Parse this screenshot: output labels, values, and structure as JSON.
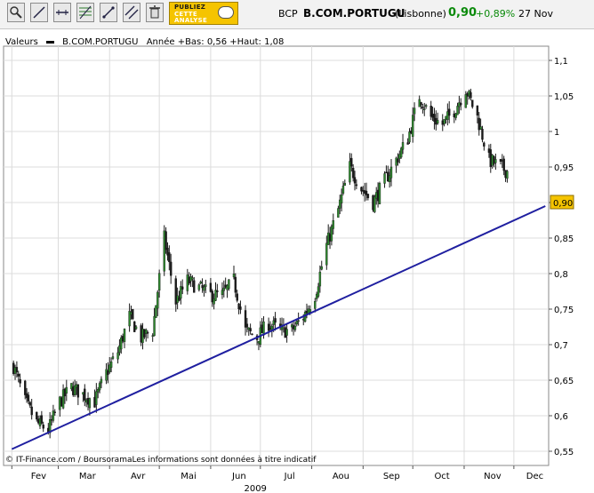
{
  "toolbar": {
    "buttons": [
      {
        "icon": "zoom-icon"
      },
      {
        "icon": "draw-line-icon"
      },
      {
        "icon": "horizontal-line-icon"
      },
      {
        "icon": "fibonacci-icon"
      },
      {
        "icon": "trend-line-icon"
      },
      {
        "icon": "parallel-lines-icon"
      },
      {
        "icon": "trash-icon"
      }
    ],
    "promo": {
      "line1": "PUBLIEZ",
      "line2": "CETTE",
      "line3": "ANALYSE",
      "icon": "speech-bubble-icon"
    }
  },
  "quote": {
    "code": "BCP",
    "name": "B.COM.PORTUGU",
    "market": "(Lisbonne)",
    "price": "0,90",
    "change": "+0,89%",
    "date": "27 Nov",
    "color_up": "#0a8a0a"
  },
  "legend": {
    "label": "Valeurs",
    "series": "B.COM.PORTUGU",
    "info": "Année +Bas: 0,56 +Haut: 1,08"
  },
  "copyright": "© IT-Finance.com / BoursoramaLes informations sont données à titre indicatif",
  "chart_data": {
    "type": "candlestick",
    "x_year": "2009",
    "x_labels": [
      "Fev",
      "Mar",
      "Avr",
      "Mai",
      "Jun",
      "Jul",
      "Aou",
      "Sep",
      "Oct",
      "Nov",
      "Dec"
    ],
    "y_ticks": [
      0.55,
      0.6,
      0.65,
      0.7,
      0.75,
      0.8,
      0.85,
      0.9,
      0.95,
      1.0,
      1.05,
      1.1
    ],
    "y_tick_labels": [
      "0,55",
      "0,6",
      "0,65",
      "0,7",
      "0,75",
      "0,8",
      "0,85",
      "0,9",
      "0,95",
      "1",
      "1,05",
      "1,1"
    ],
    "ylim": [
      0.53,
      1.12
    ],
    "grid": true,
    "last_price": 0.9,
    "last_price_label": "0,90",
    "last_price_color": "#f5c400",
    "candle_color": "#1a1a1a",
    "candle_up_color": "#2e8b2e",
    "trendline": {
      "color": "#1f1fa0",
      "from": {
        "date": "2009-02-01",
        "value": 0.553
      },
      "to": {
        "date": "2009-12-20",
        "value": 0.895
      }
    },
    "close_series": [
      {
        "date": "2009-02-02",
        "value": 0.67
      },
      {
        "date": "2009-02-09",
        "value": 0.62
      },
      {
        "date": "2009-02-16",
        "value": 0.59
      },
      {
        "date": "2009-02-23",
        "value": 0.58
      },
      {
        "date": "2009-03-02",
        "value": 0.62
      },
      {
        "date": "2009-03-09",
        "value": 0.64
      },
      {
        "date": "2009-03-16",
        "value": 0.63
      },
      {
        "date": "2009-03-23",
        "value": 0.62
      },
      {
        "date": "2009-03-30",
        "value": 0.66
      },
      {
        "date": "2009-04-06",
        "value": 0.69
      },
      {
        "date": "2009-04-13",
        "value": 0.74
      },
      {
        "date": "2009-04-20",
        "value": 0.71
      },
      {
        "date": "2009-04-27",
        "value": 0.72
      },
      {
        "date": "2009-05-04",
        "value": 0.85
      },
      {
        "date": "2009-05-11",
        "value": 0.76
      },
      {
        "date": "2009-05-18",
        "value": 0.79
      },
      {
        "date": "2009-05-25",
        "value": 0.78
      },
      {
        "date": "2009-06-01",
        "value": 0.77
      },
      {
        "date": "2009-06-08",
        "value": 0.77
      },
      {
        "date": "2009-06-15",
        "value": 0.79
      },
      {
        "date": "2009-06-22",
        "value": 0.72
      },
      {
        "date": "2009-06-29",
        "value": 0.71
      },
      {
        "date": "2009-07-06",
        "value": 0.73
      },
      {
        "date": "2009-07-13",
        "value": 0.72
      },
      {
        "date": "2009-07-20",
        "value": 0.72
      },
      {
        "date": "2009-07-27",
        "value": 0.74
      },
      {
        "date": "2009-08-03",
        "value": 0.77
      },
      {
        "date": "2009-08-10",
        "value": 0.84
      },
      {
        "date": "2009-08-17",
        "value": 0.89
      },
      {
        "date": "2009-08-24",
        "value": 0.95
      },
      {
        "date": "2009-08-31",
        "value": 0.92
      },
      {
        "date": "2009-09-07",
        "value": 0.9
      },
      {
        "date": "2009-09-14",
        "value": 0.93
      },
      {
        "date": "2009-09-21",
        "value": 0.96
      },
      {
        "date": "2009-09-28",
        "value": 0.99
      },
      {
        "date": "2009-10-05",
        "value": 1.05
      },
      {
        "date": "2009-10-12",
        "value": 1.02
      },
      {
        "date": "2009-10-19",
        "value": 1.01
      },
      {
        "date": "2009-10-26",
        "value": 1.03
      },
      {
        "date": "2009-11-02",
        "value": 1.06
      },
      {
        "date": "2009-11-09",
        "value": 1.02
      },
      {
        "date": "2009-11-16",
        "value": 0.96
      },
      {
        "date": "2009-11-23",
        "value": 0.95
      },
      {
        "date": "2009-11-30",
        "value": 0.94
      },
      {
        "date": "2009-12-07",
        "value": 0.93
      },
      {
        "date": "2009-12-14",
        "value": 0.9
      }
    ]
  }
}
